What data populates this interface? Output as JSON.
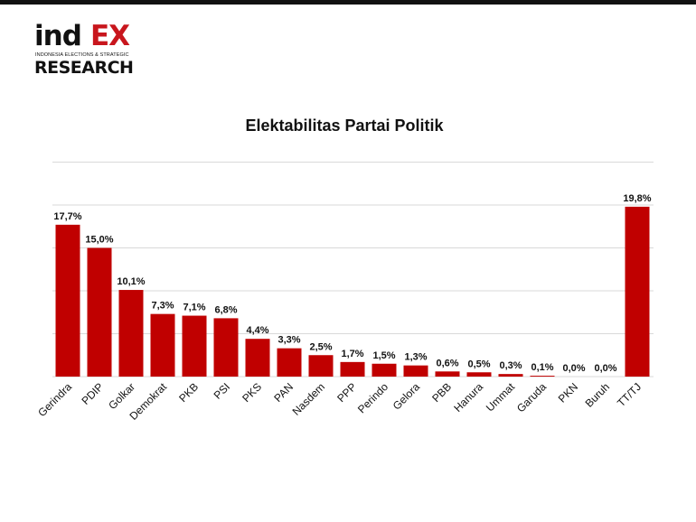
{
  "logo": {
    "ind": "ind",
    "ex": "EX",
    "tagline": "INDONESIA ELECTIONS & STRATEGIC",
    "research": "RESEARCH"
  },
  "colors": {
    "bar": "#c00000",
    "logo_red": "#c8161d",
    "grid": "#d9d9d9"
  },
  "chart_data": {
    "type": "bar",
    "title": "Elektabilitas Partai Politik",
    "xlabel": "",
    "ylabel": "",
    "categories": [
      "Gerindra",
      "PDIP",
      "Golkar",
      "Demokrat",
      "PKB",
      "PSI",
      "PKS",
      "PAN",
      "Nasdem",
      "PPP",
      "Perindo",
      "Gelora",
      "PBB",
      "Hanura",
      "Ummat",
      "Garuda",
      "PKN",
      "Buruh",
      "TT/TJ"
    ],
    "values": [
      17.7,
      15.0,
      10.1,
      7.3,
      7.1,
      6.8,
      4.4,
      3.3,
      2.5,
      1.7,
      1.5,
      1.3,
      0.6,
      0.5,
      0.3,
      0.1,
      0.0,
      0.0,
      19.8
    ],
    "labels": [
      "17,7%",
      "15,0%",
      "10,1%",
      "7,3%",
      "7,1%",
      "6,8%",
      "4,4%",
      "3,3%",
      "2,5%",
      "1,7%",
      "1,5%",
      "1,3%",
      "0,6%",
      "0,5%",
      "0,3%",
      "0,1%",
      "0,0%",
      "0,0%",
      "19,8%"
    ],
    "ylim": [
      0,
      25
    ],
    "grid": true,
    "legend": "none"
  }
}
